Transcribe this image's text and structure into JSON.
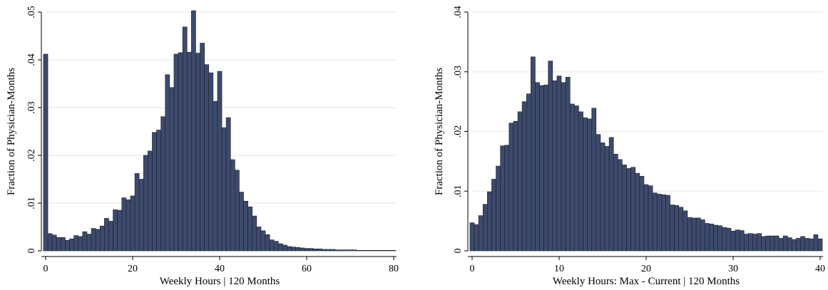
{
  "style": {
    "bar_color": "#3d4a6b",
    "bar_edge": "#1a1f33",
    "grid_color": "#e6e6e6",
    "axis_color": "#000000"
  },
  "chart_data": [
    {
      "type": "bar",
      "xlabel": "Weekly Hours | 120 Months",
      "ylabel": "Fraction of Physician-Months",
      "xlim": [
        0,
        80
      ],
      "ylim": [
        0,
        0.05
      ],
      "grid": true,
      "bin_width": 1,
      "xticks": [
        0,
        20,
        40,
        60,
        80
      ],
      "xtick_labels": [
        "0",
        "20",
        "40",
        "60",
        "80"
      ],
      "yticks": [
        0,
        0.01,
        0.02,
        0.03,
        0.04,
        0.05
      ],
      "ytick_labels": [
        "0",
        ".01",
        ".02",
        ".03",
        ".04",
        ".05"
      ],
      "x": [
        0,
        1,
        2,
        3,
        4,
        5,
        6,
        7,
        8,
        9,
        10,
        11,
        12,
        13,
        14,
        15,
        16,
        17,
        18,
        19,
        20,
        21,
        22,
        23,
        24,
        25,
        26,
        27,
        28,
        29,
        30,
        31,
        32,
        33,
        34,
        35,
        36,
        37,
        38,
        39,
        40,
        41,
        42,
        43,
        44,
        45,
        46,
        47,
        48,
        49,
        50,
        51,
        52,
        53,
        54,
        55,
        56,
        57,
        58,
        59,
        60,
        61,
        62,
        63,
        64,
        65,
        66,
        67,
        68,
        69,
        70,
        71,
        72,
        73,
        74,
        75,
        76,
        77,
        78,
        79,
        80
      ],
      "values": [
        0.0412,
        0.0036,
        0.0033,
        0.0028,
        0.0028,
        0.0022,
        0.0025,
        0.0032,
        0.003,
        0.004,
        0.0035,
        0.0047,
        0.0045,
        0.0052,
        0.0068,
        0.0062,
        0.0086,
        0.0085,
        0.0111,
        0.0107,
        0.0115,
        0.0162,
        0.015,
        0.02,
        0.0209,
        0.0248,
        0.0253,
        0.0281,
        0.0369,
        0.0342,
        0.0412,
        0.0415,
        0.0469,
        0.0416,
        0.0503,
        0.0414,
        0.0435,
        0.039,
        0.0373,
        0.0313,
        0.0376,
        0.0258,
        0.0279,
        0.0191,
        0.0169,
        0.0123,
        0.0104,
        0.0092,
        0.0073,
        0.005,
        0.0042,
        0.0034,
        0.0023,
        0.002,
        0.0015,
        0.0012,
        0.0009,
        0.0008,
        0.0007,
        0.0006,
        0.0005,
        0.0005,
        0.0004,
        0.0004,
        0.0003,
        0.0003,
        0.0003,
        0.0002,
        0.0002,
        0.0002,
        0.0002,
        0.0002,
        0.0001,
        0.0001,
        0.0001,
        0.0001,
        0.0001,
        0.0001,
        0.0001,
        0.0001,
        0.0001
      ]
    },
    {
      "type": "bar",
      "xlabel": "Weekly Hours: Max - Current | 120 Months",
      "ylabel": "Fraction of Physician-Months",
      "xlim": [
        0,
        40
      ],
      "ylim": [
        0,
        0.04
      ],
      "grid": true,
      "bin_width": 0.5,
      "xticks": [
        0,
        10,
        20,
        30,
        40
      ],
      "xtick_labels": [
        "0",
        "10",
        "20",
        "30",
        "40"
      ],
      "yticks": [
        0,
        0.01,
        0.02,
        0.03,
        0.04
      ],
      "ytick_labels": [
        "0",
        ".01",
        ".02",
        ".03",
        ".04"
      ],
      "x": [
        0,
        0.5,
        1,
        1.5,
        2,
        2.5,
        3,
        3.5,
        4,
        4.5,
        5,
        5.5,
        6,
        6.5,
        7,
        7.5,
        8,
        8.5,
        9,
        9.5,
        10,
        10.5,
        11,
        11.5,
        12,
        12.5,
        13,
        13.5,
        14,
        14.5,
        15,
        15.5,
        16,
        16.5,
        17,
        17.5,
        18,
        18.5,
        19,
        19.5,
        20,
        20.5,
        21,
        21.5,
        22,
        22.5,
        23,
        23.5,
        24,
        24.5,
        25,
        25.5,
        26,
        26.5,
        27,
        27.5,
        28,
        28.5,
        29,
        29.5,
        30,
        30.5,
        31,
        31.5,
        32,
        32.5,
        33,
        33.5,
        34,
        34.5,
        35,
        35.5,
        36,
        36.5,
        37,
        37.5,
        38,
        38.5,
        39,
        39.5,
        40
      ],
      "values": [
        0.0047,
        0.0044,
        0.0059,
        0.0078,
        0.0099,
        0.012,
        0.0142,
        0.0176,
        0.0177,
        0.0214,
        0.0217,
        0.0233,
        0.025,
        0.0263,
        0.0325,
        0.0282,
        0.0277,
        0.0278,
        0.0318,
        0.0285,
        0.0293,
        0.0282,
        0.0291,
        0.0246,
        0.0243,
        0.0233,
        0.0223,
        0.0221,
        0.0239,
        0.0195,
        0.0181,
        0.0175,
        0.019,
        0.0162,
        0.0153,
        0.0144,
        0.0138,
        0.014,
        0.013,
        0.0125,
        0.0111,
        0.0109,
        0.0097,
        0.0095,
        0.0094,
        0.0093,
        0.0077,
        0.0076,
        0.0073,
        0.0067,
        0.0056,
        0.0055,
        0.0055,
        0.0052,
        0.0046,
        0.0045,
        0.0043,
        0.0042,
        0.0039,
        0.0038,
        0.0033,
        0.0035,
        0.0034,
        0.0028,
        0.0029,
        0.0028,
        0.0029,
        0.0024,
        0.0025,
        0.0025,
        0.0025,
        0.0021,
        0.0025,
        0.0022,
        0.0019,
        0.0021,
        0.0024,
        0.0021,
        0.002,
        0.0027,
        0.002
      ]
    }
  ]
}
